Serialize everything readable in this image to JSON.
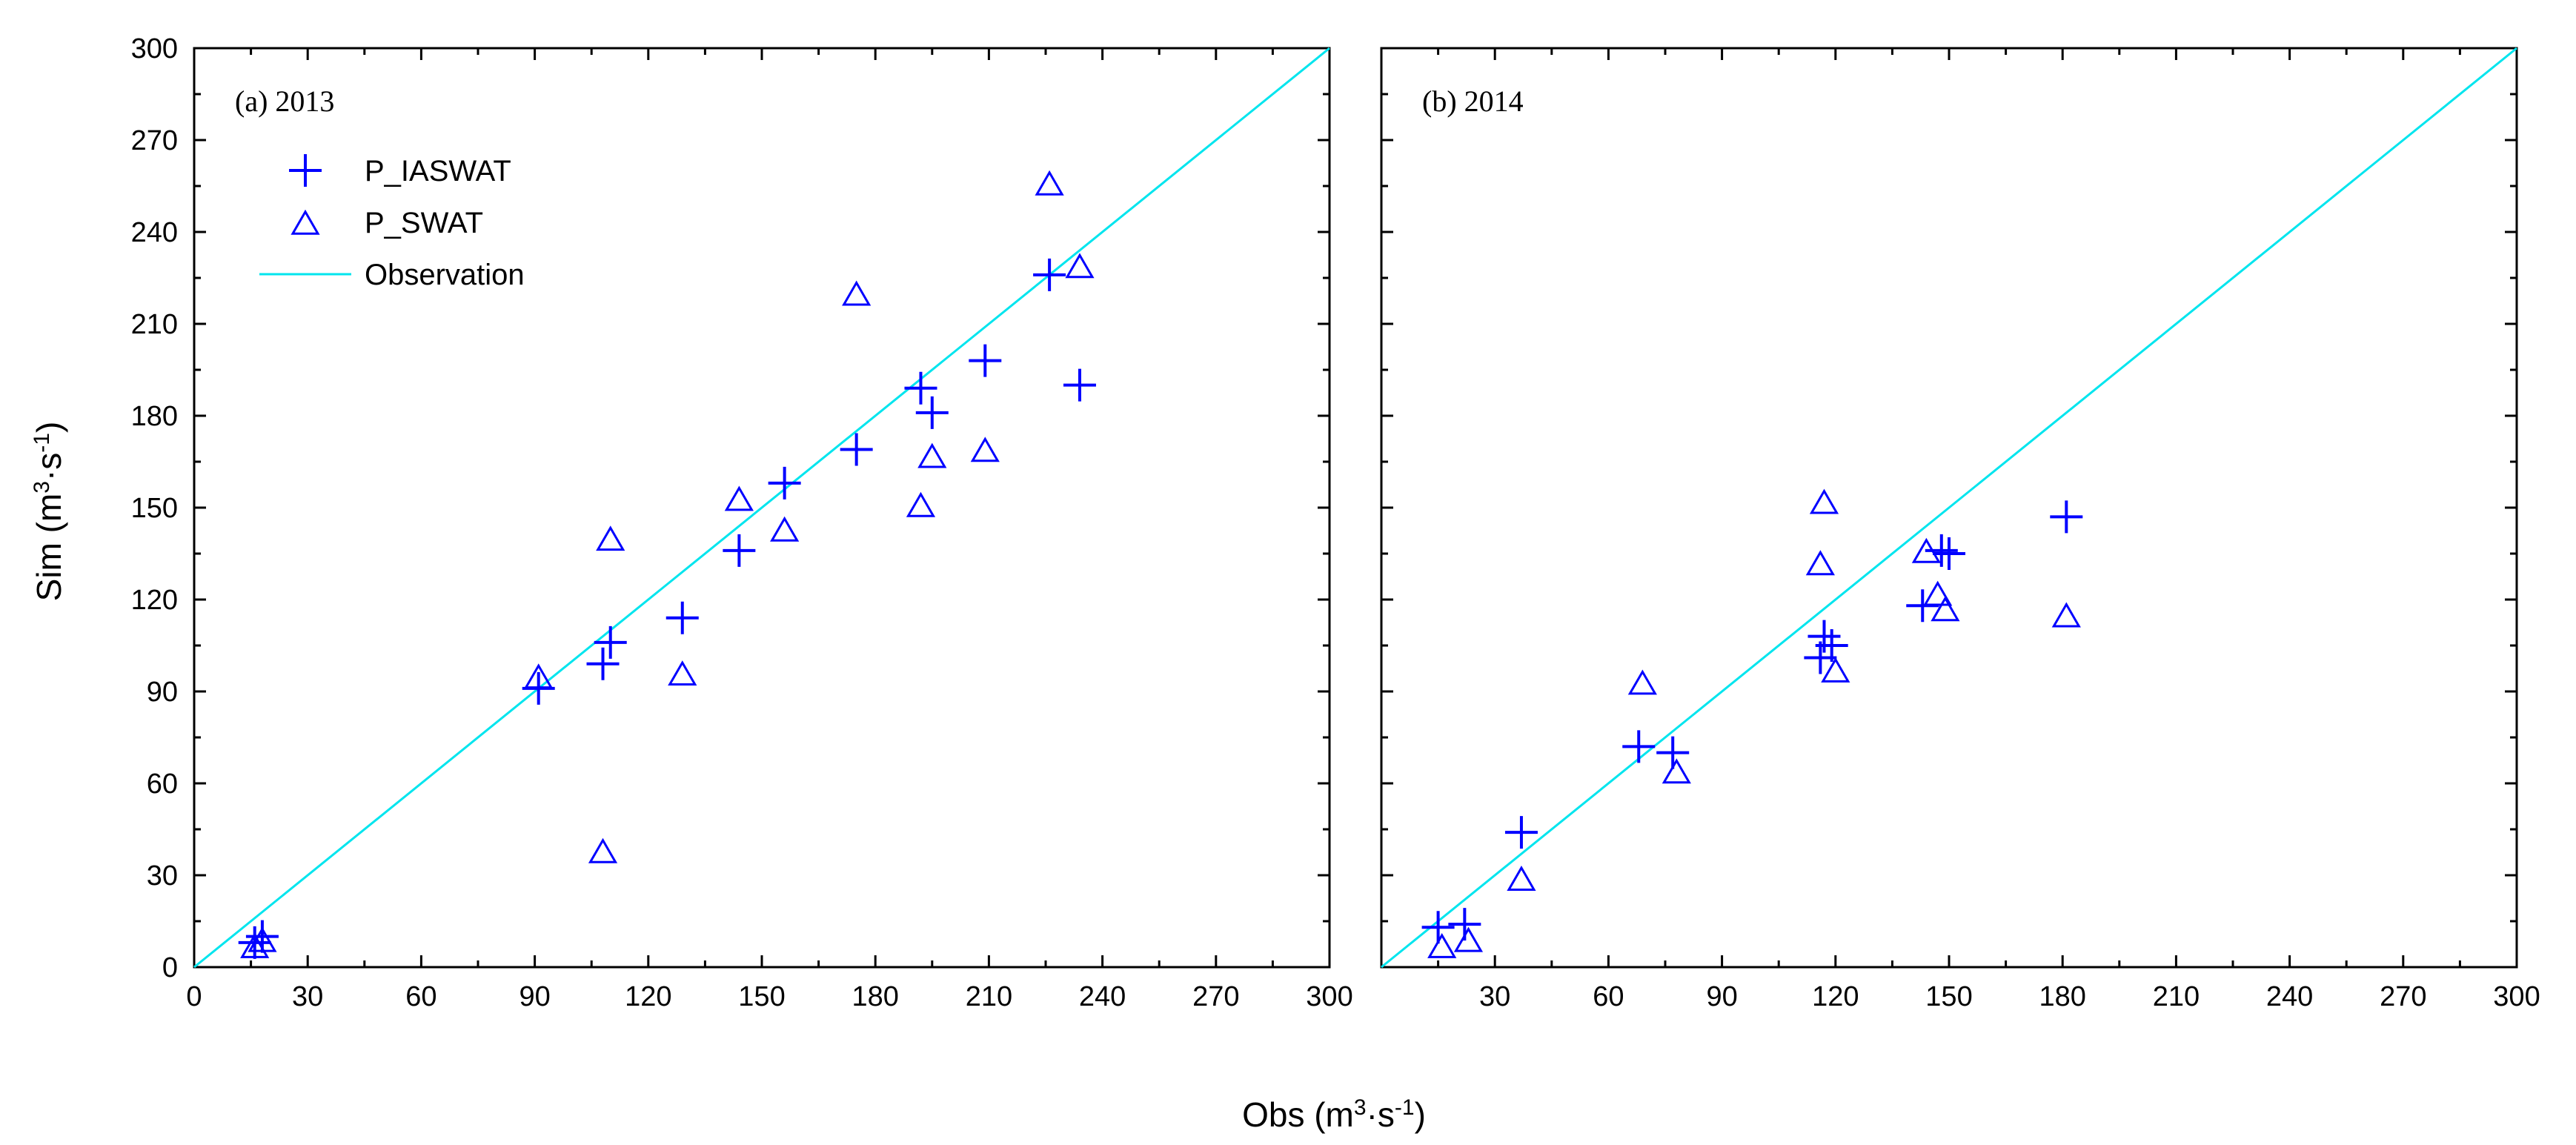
{
  "chart_data": [
    {
      "type": "scatter",
      "panel_label": "(a) 2013",
      "xlim": [
        0,
        300
      ],
      "ylim": [
        0,
        300
      ],
      "xticks": [
        "0",
        "30",
        "60",
        "90",
        "120",
        "150",
        "180",
        "210",
        "240",
        "270",
        "300"
      ],
      "yticks": [
        "0",
        "30",
        "60",
        "90",
        "120",
        "150",
        "180",
        "210",
        "240",
        "270",
        "300"
      ],
      "legend": {
        "placement": "top-left",
        "entries": [
          {
            "label": "P_IASWAT",
            "marker": "plus"
          },
          {
            "label": "P_SWAT",
            "marker": "triangle"
          },
          {
            "label": "Observation",
            "marker": "line"
          }
        ]
      },
      "series": [
        {
          "name": "P_IASWAT",
          "marker": "plus",
          "points": [
            {
              "x": 16,
              "y": 8
            },
            {
              "x": 18,
              "y": 10
            },
            {
              "x": 91,
              "y": 91
            },
            {
              "x": 108,
              "y": 99
            },
            {
              "x": 110,
              "y": 106
            },
            {
              "x": 129,
              "y": 114
            },
            {
              "x": 144,
              "y": 136
            },
            {
              "x": 156,
              "y": 158
            },
            {
              "x": 175,
              "y": 169
            },
            {
              "x": 192,
              "y": 189
            },
            {
              "x": 195,
              "y": 181
            },
            {
              "x": 209,
              "y": 198
            },
            {
              "x": 226,
              "y": 226
            },
            {
              "x": 234,
              "y": 190
            }
          ]
        },
        {
          "name": "P_SWAT",
          "marker": "triangle",
          "points": [
            {
              "x": 16,
              "y": 6
            },
            {
              "x": 18,
              "y": 8
            },
            {
              "x": 91,
              "y": 94
            },
            {
              "x": 108,
              "y": 37
            },
            {
              "x": 110,
              "y": 139
            },
            {
              "x": 129,
              "y": 95
            },
            {
              "x": 144,
              "y": 152
            },
            {
              "x": 156,
              "y": 142
            },
            {
              "x": 175,
              "y": 219
            },
            {
              "x": 192,
              "y": 150
            },
            {
              "x": 195,
              "y": 166
            },
            {
              "x": 209,
              "y": 168
            },
            {
              "x": 226,
              "y": 255
            },
            {
              "x": 234,
              "y": 228
            }
          ]
        },
        {
          "name": "Observation",
          "marker": "line",
          "points": [
            {
              "x": 0,
              "y": 0
            },
            {
              "x": 300,
              "y": 300
            }
          ]
        }
      ]
    },
    {
      "type": "scatter",
      "panel_label": "(b) 2014",
      "xlim": [
        0,
        300
      ],
      "ylim": [
        0,
        300
      ],
      "xticks": [
        "",
        "30",
        "60",
        "90",
        "120",
        "150",
        "180",
        "210",
        "240",
        "270",
        "300"
      ],
      "yticks": [],
      "series": [
        {
          "name": "P_IASWAT",
          "marker": "plus",
          "points": [
            {
              "x": 15,
              "y": 13
            },
            {
              "x": 22,
              "y": 14
            },
            {
              "x": 37,
              "y": 44
            },
            {
              "x": 68,
              "y": 72
            },
            {
              "x": 77,
              "y": 70
            },
            {
              "x": 116,
              "y": 101
            },
            {
              "x": 117,
              "y": 108
            },
            {
              "x": 119,
              "y": 105
            },
            {
              "x": 143,
              "y": 118
            },
            {
              "x": 148,
              "y": 136
            },
            {
              "x": 150,
              "y": 135
            },
            {
              "x": 181,
              "y": 147
            }
          ]
        },
        {
          "name": "P_SWAT",
          "marker": "triangle",
          "points": [
            {
              "x": 16,
              "y": 6
            },
            {
              "x": 23,
              "y": 8
            },
            {
              "x": 37,
              "y": 28
            },
            {
              "x": 69,
              "y": 92
            },
            {
              "x": 78,
              "y": 63
            },
            {
              "x": 116,
              "y": 131
            },
            {
              "x": 117,
              "y": 151
            },
            {
              "x": 120,
              "y": 96
            },
            {
              "x": 144,
              "y": 135
            },
            {
              "x": 147,
              "y": 121
            },
            {
              "x": 149,
              "y": 116
            },
            {
              "x": 181,
              "y": 114
            }
          ]
        },
        {
          "name": "Observation",
          "marker": "line",
          "points": [
            {
              "x": 0,
              "y": 0
            },
            {
              "x": 300,
              "y": 300
            }
          ]
        }
      ]
    }
  ],
  "axes": {
    "ylabel": "Sim (m",
    "ylabel_sup": "3",
    "ylabel_mid": "·s",
    "ylabel_sup2": "-1",
    "ylabel_end": ")",
    "xlabel": "Obs (m",
    "xlabel_sup": "3",
    "xlabel_mid": "·s",
    "xlabel_sup2": "-1",
    "xlabel_end": ")"
  },
  "colors": {
    "marker": "#0000ff",
    "observation_line": "#00e5ee",
    "axis": "#000000"
  }
}
